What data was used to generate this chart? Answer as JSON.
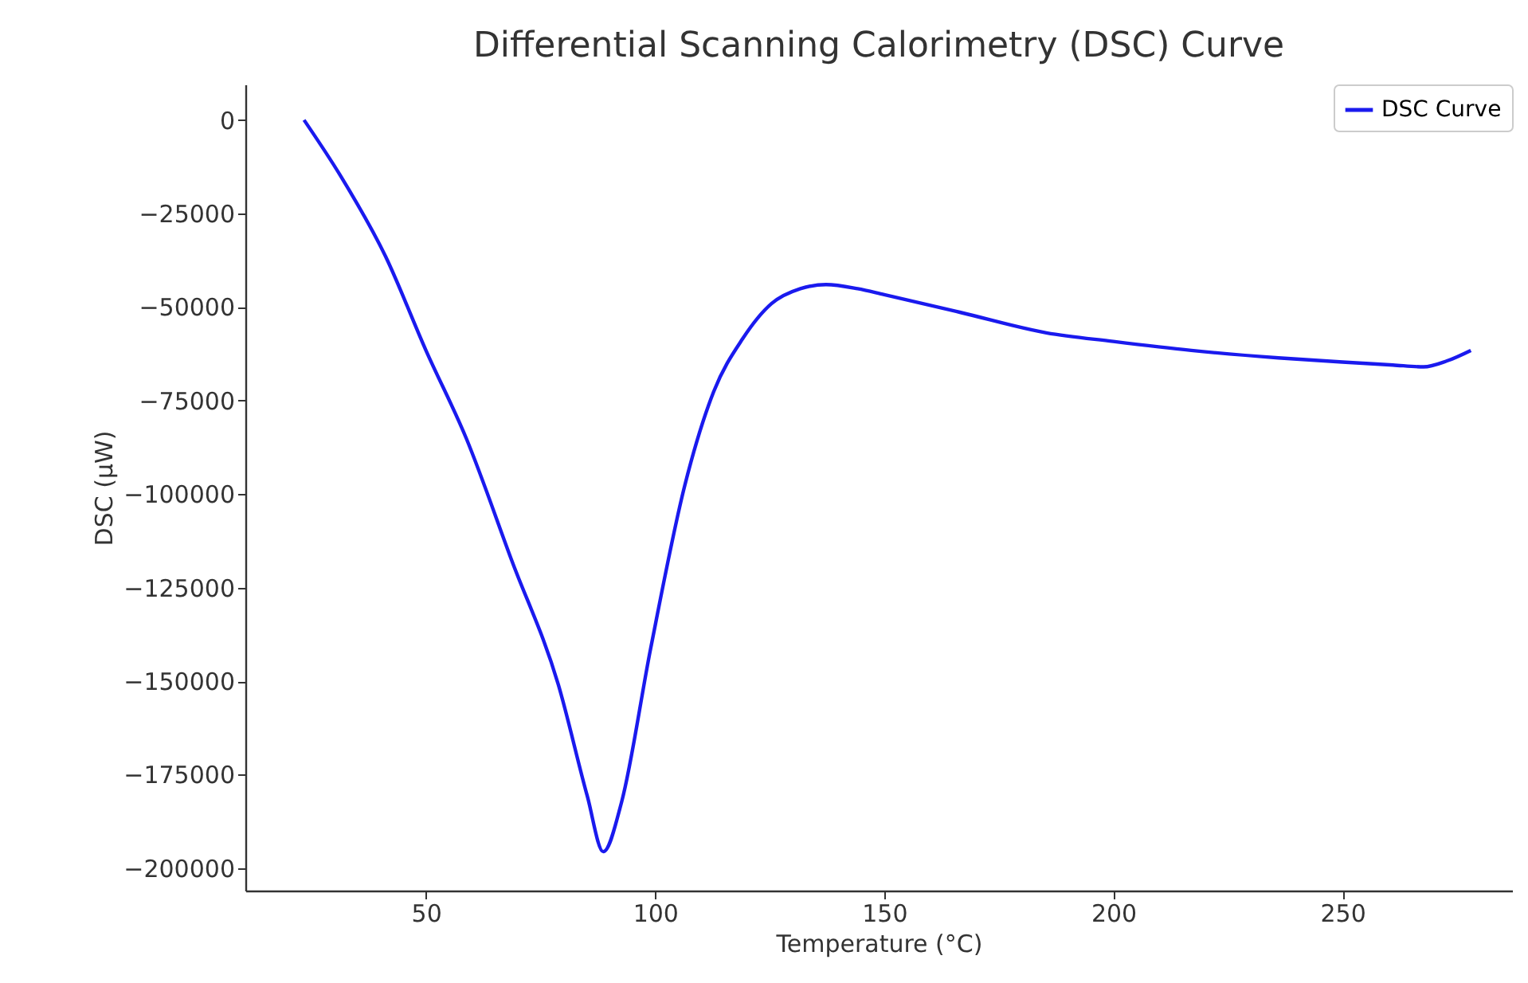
{
  "chart_data": {
    "type": "line",
    "title": "Differential Scanning Calorimetry (DSC) Curve",
    "xlabel": "Temperature (°C)",
    "ylabel": "DSC (μW)",
    "xlim": [
      10.6,
      287
    ],
    "ylim": [
      -206000,
      9500
    ],
    "xticks": [
      50,
      100,
      150,
      200,
      250
    ],
    "yticks": [
      0,
      -25000,
      -50000,
      -75000,
      -100000,
      -125000,
      -150000,
      -175000,
      -200000
    ],
    "grid": false,
    "legend": "top right",
    "series": [
      {
        "name": "DSC Curve",
        "color": "#1a1aee",
        "line_style": "solid",
        "x": [
          23.4,
          31.2,
          41.2,
          50,
          58.8,
          68.8,
          78.9,
          85.2,
          88.7,
          92.7,
          99,
          106.5,
          112.8,
          119.1,
          125.4,
          131.7,
          137.3,
          144.2,
          150,
          166.5,
          185.4,
          200,
          217,
          236,
          250,
          261,
          267.7,
          272.8,
          278
        ],
        "values": [
          0,
          -14600,
          -36500,
          -61600,
          -85100,
          -118000,
          -151000,
          -180700,
          -195600,
          -182300,
          -141500,
          -97600,
          -72600,
          -58500,
          -49100,
          -45100,
          -44000,
          -45100,
          -46700,
          -51400,
          -56900,
          -59200,
          -61600,
          -63600,
          -64700,
          -65500,
          -66000,
          -64400,
          -61600
        ]
      }
    ]
  }
}
